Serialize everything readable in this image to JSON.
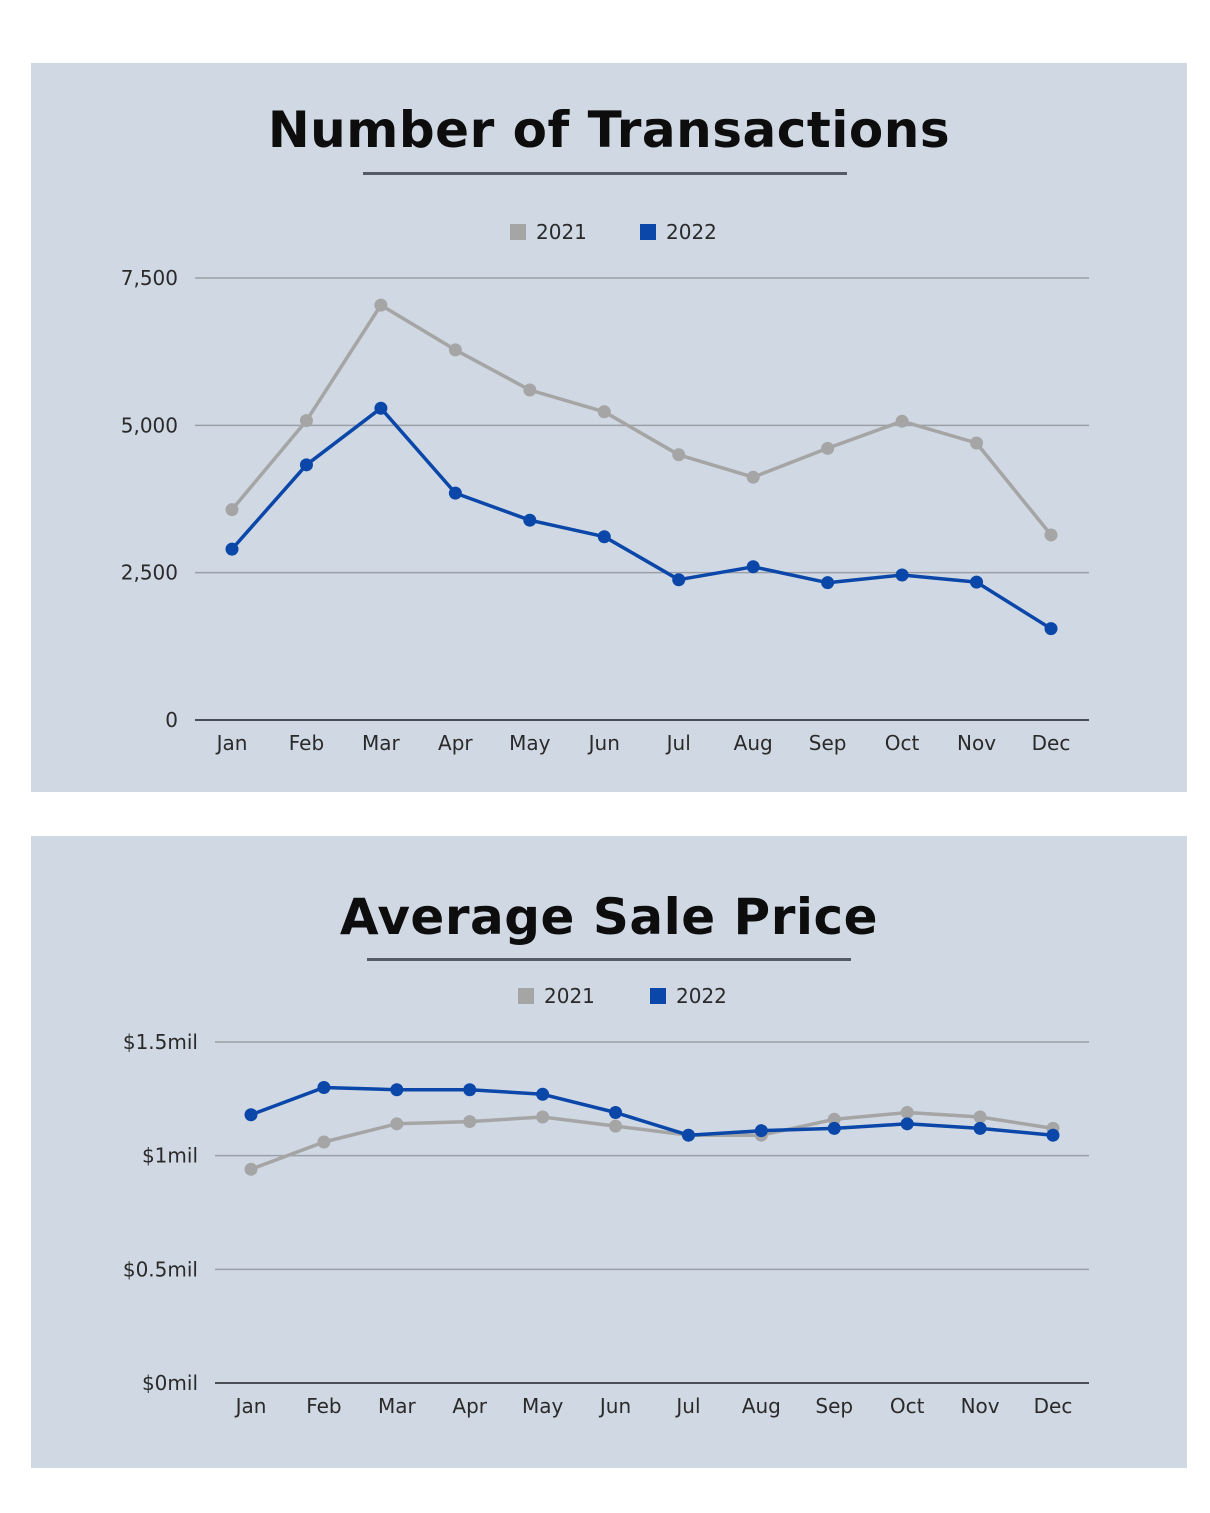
{
  "charts": [
    {
      "title": "Number of Transactions",
      "legend": [
        {
          "label": "2021",
          "color": "#a5a5a5"
        },
        {
          "label": "2022",
          "color": "#0a47a9"
        }
      ]
    },
    {
      "title": "Average Sale Price",
      "legend": [
        {
          "label": "2021",
          "color": "#a5a5a5"
        },
        {
          "label": "2022",
          "color": "#0a47a9"
        }
      ]
    }
  ],
  "chart_data": [
    {
      "type": "line",
      "title": "Number of Transactions",
      "xlabel": "",
      "ylabel": "",
      "categories": [
        "Jan",
        "Feb",
        "Mar",
        "Apr",
        "May",
        "Jun",
        "Jul",
        "Aug",
        "Sep",
        "Oct",
        "Nov",
        "Dec"
      ],
      "yticks": [
        0,
        2500,
        5000,
        7500
      ],
      "ytick_labels": [
        "0",
        "2,500",
        "5,000",
        "7,500"
      ],
      "ylim": [
        0,
        7500
      ],
      "grid": true,
      "legend_position": "top-center",
      "series": [
        {
          "name": "2021",
          "color": "#a5a5a5",
          "values": [
            3570,
            5080,
            7040,
            6280,
            5600,
            5230,
            4500,
            4120,
            4610,
            5070,
            4700,
            3140
          ]
        },
        {
          "name": "2022",
          "color": "#0a47a9",
          "values": [
            2900,
            4330,
            5290,
            3850,
            3390,
            3110,
            2380,
            2600,
            2330,
            2460,
            2340,
            1550
          ]
        }
      ]
    },
    {
      "type": "line",
      "title": "Average Sale Price",
      "xlabel": "",
      "ylabel": "",
      "categories": [
        "Jan",
        "Feb",
        "Mar",
        "Apr",
        "May",
        "Jun",
        "Jul",
        "Aug",
        "Sep",
        "Oct",
        "Nov",
        "Dec"
      ],
      "yticks": [
        0,
        0.5,
        1,
        1.5
      ],
      "ytick_labels": [
        "$0mil",
        "$0.5mil",
        "$1mil",
        "$1.5mil"
      ],
      "ylim": [
        0,
        1.5
      ],
      "grid": true,
      "legend_position": "top-center",
      "series": [
        {
          "name": "2021",
          "color": "#a5a5a5",
          "values": [
            0.94,
            1.06,
            1.14,
            1.15,
            1.17,
            1.13,
            1.09,
            1.09,
            1.16,
            1.19,
            1.17,
            1.12
          ]
        },
        {
          "name": "2022",
          "color": "#0a47a9",
          "values": [
            1.18,
            1.3,
            1.29,
            1.29,
            1.27,
            1.19,
            1.09,
            1.11,
            1.12,
            1.14,
            1.12,
            1.09
          ]
        }
      ]
    }
  ]
}
